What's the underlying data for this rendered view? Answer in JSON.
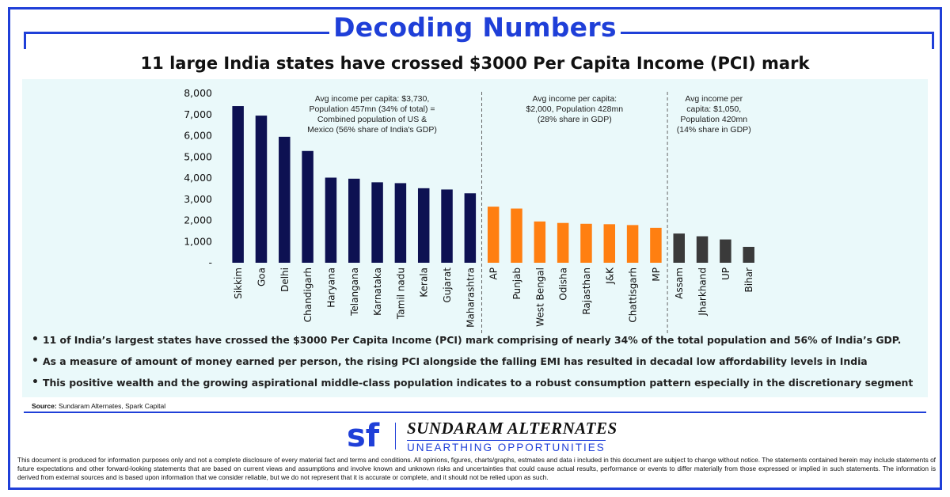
{
  "banner": "Decoding Numbers",
  "headline": "11 large India states have crossed $3000 Per Capita Income (PCI) mark",
  "chart_data": {
    "type": "bar",
    "ylim": [
      0,
      8000
    ],
    "yticks": [
      0,
      1000,
      2000,
      3000,
      4000,
      5000,
      6000,
      7000,
      8000
    ],
    "ytick_labels": [
      "-",
      "1,000",
      "2,000",
      "3,000",
      "4,000",
      "5,000",
      "6,000",
      "7,000",
      "8,000"
    ],
    "grid": false,
    "categories": [
      "Sikkim",
      "Goa",
      "Delhi",
      "Chandigarh",
      "Haryana",
      "Telangana",
      "Karnataka",
      "Tamil nadu",
      "Kerala",
      "Gujarat",
      "Maharashtra",
      "AP",
      "Punjab",
      "West Bengal",
      "Odisha",
      "Rajasthan",
      "J&K",
      "Chattisgarh",
      "MP",
      "Assam",
      "Jharkhand",
      "UP",
      "Bihar"
    ],
    "values": [
      7400,
      6950,
      5950,
      5280,
      4020,
      3970,
      3800,
      3760,
      3520,
      3460,
      3280,
      2650,
      2560,
      1950,
      1880,
      1840,
      1820,
      1780,
      1650,
      1380,
      1250,
      1100,
      750
    ],
    "groups": [
      {
        "start": 0,
        "end": 10,
        "color": "#0d1152",
        "annotation": [
          "Avg income per capita: $3,730,",
          "Population 457mn (34% of total) =",
          "Combined population of US &",
          "Mexico (56% share of India's GDP)"
        ]
      },
      {
        "start": 11,
        "end": 18,
        "color": "#ff7f11",
        "annotation": [
          "Avg income per capita:",
          "$2,000, Population 428mn",
          "(28% share in GDP)"
        ]
      },
      {
        "start": 19,
        "end": 22,
        "color": "#3a3a3a",
        "annotation": [
          "Avg income per",
          "capita: $1,050,",
          "Population 420mn",
          "(14% share in GDP)"
        ]
      }
    ]
  },
  "bullets": [
    "11 of India’s largest states have crossed the $3000 Per Capita Income (PCI) mark comprising of nearly 34% of the total population and 56% of India’s GDP.",
    "As a measure of amount of money earned per person, the rising PCI alongside the falling EMI has resulted in decadal low affordability levels in India",
    "This positive wealth and the growing aspirational middle-class population indicates to a robust consumption pattern especially in the discretionary segment"
  ],
  "source": {
    "label": "Source:",
    "text": " Sundaram Alternates, Spark Capital"
  },
  "brand": {
    "name": "SUNDARAM ALTERNATES",
    "tagline": "UNEARTHING OPPORTUNITIES",
    "mark": "sf"
  },
  "disclaimer": "This document is produced for information purposes only and not a complete disclosure of every material fact and terms and conditions. All opinions, figures, charts/graphs, estmates and data i included in this document are subject to change without notice. The statements contained herein may include statements of future expectations and other forward-looking statements that are based on current views and assumptions and involve known and unknown risks and uncertainties that could cause actual results, performance or events to differ materially from those expressed or implied in such statements. The information is derived from external sources and is based upon information that we consider reliable, but we do not represent that it is accurate or complete, and it should not be relied upon as such.",
  "colors": {
    "accent": "#1f3fd8",
    "panel": "#eaf9fa"
  }
}
